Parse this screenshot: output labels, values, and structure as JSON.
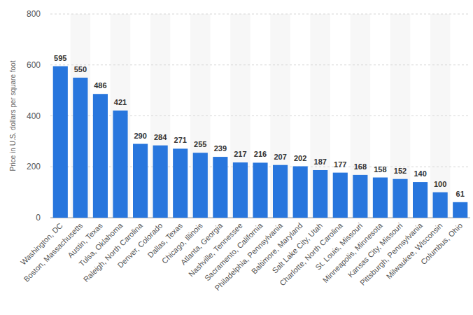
{
  "chart_data": {
    "type": "bar",
    "y_label": "Price in U.S. dollars per square foot",
    "categories": [
      "Washington, DC",
      "Boston, Massachusetts",
      "Austin, Texas",
      "Tulsa, Oklahoma",
      "Raleigh, North Carolina",
      "Denver, Colorado",
      "Dallas, Texas",
      "Chicago, Illinois",
      "Atlanta, Georgia",
      "Nashville, Tennessee",
      "Sacramento, California",
      "Philadelphia, Pennsylvania",
      "Baltimore, Maryland",
      "Salt Lake City, Utah",
      "Charlotte, North Carolina",
      "St. Louis, Missouri",
      "Minneapolis, Minnesota",
      "Kansas City, Missouri",
      "Pittsburgh, Pennsylvania",
      "Milwaukee, Wisconsin",
      "Columbus, Ohio"
    ],
    "values": [
      595,
      550,
      486,
      421,
      290,
      284,
      271,
      255,
      239,
      217,
      216,
      207,
      202,
      187,
      177,
      168,
      158,
      152,
      140,
      100,
      61
    ],
    "color": "#2876dd",
    "ylim": [
      0,
      800
    ],
    "yticks": [
      0,
      200,
      400,
      600,
      800
    ],
    "grid": true,
    "data_labels": true
  }
}
